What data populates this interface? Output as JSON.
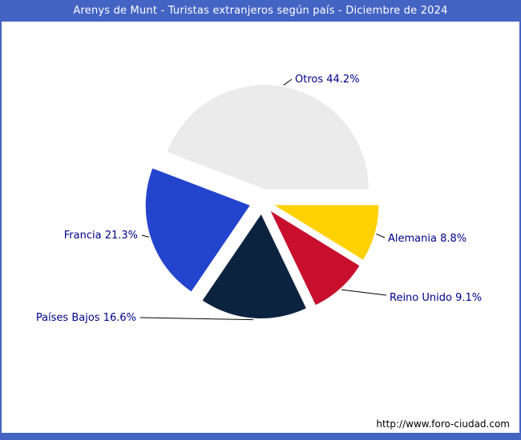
{
  "title": "Arenys de Munt - Turistas extranjeros según país - Diciembre de 2024",
  "watermark": "http://www.foro-ciudad.com",
  "colors": {
    "frame_blue": "#4464c4",
    "title_text": "#ffffff",
    "label_text": "#00008b",
    "leader_line": "#000000",
    "background": "#ffffff"
  },
  "chart_data": {
    "type": "pie",
    "title": "Arenys de Munt - Turistas extranjeros según país - Diciembre de 2024",
    "unit": "%",
    "start_angle_deg": 0,
    "direction": "counterclockwise",
    "exploded": true,
    "legend": "none (direct labels with leader lines)",
    "slices": [
      {
        "label": "Otros",
        "value": 44.2,
        "color": "#ebebeb",
        "label_text": "Otros 44.2%"
      },
      {
        "label": "Francia",
        "value": 21.3,
        "color": "#2344cc",
        "label_text": "Francia 21.3%"
      },
      {
        "label": "Países Bajos",
        "value": 16.6,
        "color": "#0c2340",
        "label_text": "Países Bajos 16.6%"
      },
      {
        "label": "Reino Unido",
        "value": 9.1,
        "color": "#c8102e",
        "label_text": "Reino Unido 9.1%"
      },
      {
        "label": "Alemania",
        "value": 8.8,
        "color": "#ffd100",
        "label_text": "Alemania 8.8%"
      }
    ]
  }
}
